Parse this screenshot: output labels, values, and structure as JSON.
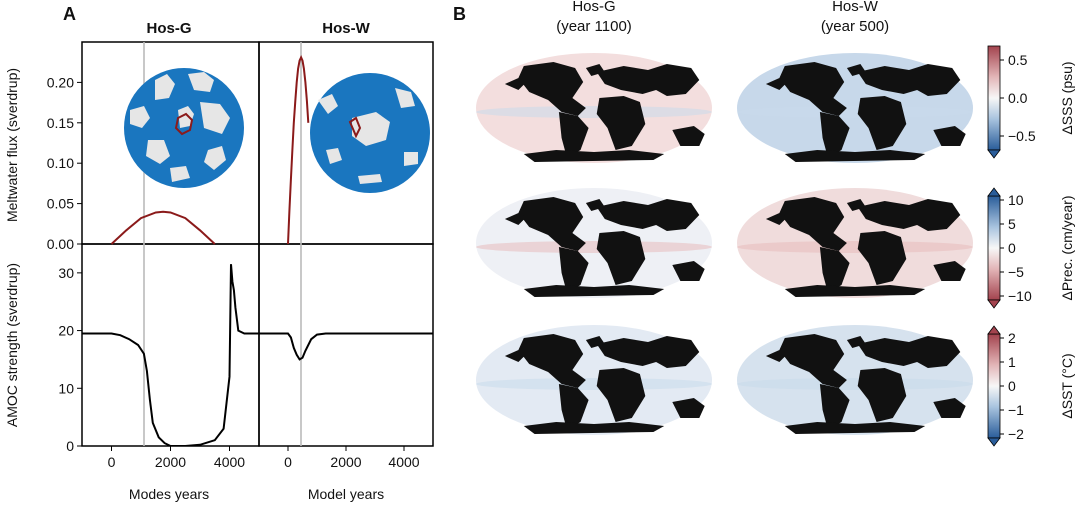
{
  "panel_a": {
    "letter": "A",
    "top_titles": [
      "Hos-G",
      "Hos-W"
    ],
    "top_ylabel": "Meltwater flux (sverdrup)",
    "bottom_ylabel": "AMOC strength (sverdrup)",
    "xlabels": [
      "Modes years",
      "Model years"
    ],
    "marker_years": [
      1100,
      500
    ]
  },
  "panel_b": {
    "letter": "B",
    "col_titles": [
      "Hos-G",
      "Hos-W"
    ],
    "col_subtitles": [
      "(year 1100)",
      "(year 500)"
    ],
    "colorbars": [
      {
        "label": "ΔSSS (psu)",
        "ticks": [
          "0.5",
          "0.0",
          "−0.5"
        ],
        "palette": "red-top"
      },
      {
        "label": "ΔPrec. (cm/year)",
        "ticks": [
          "10",
          "5",
          "0",
          "−5",
          "−10"
        ],
        "palette": "blue-top"
      },
      {
        "label": "ΔSST (°C)",
        "ticks": [
          "2",
          "1",
          "0",
          "−1",
          "−2"
        ],
        "palette": "red-top"
      }
    ],
    "map_tints": [
      [
        "#f3dede",
        "#c7d8ea"
      ],
      [
        "#eef0f5",
        "#f0dcdc"
      ],
      [
        "#e3eaf3",
        "#d6e2ee"
      ]
    ]
  },
  "colors": {
    "flux": "#8b1a1a",
    "amoc": "#000000",
    "marker": "#bbbbbb",
    "ocean": "#1a76bf",
    "ice": "#e6e6e6"
  },
  "chart_data": [
    {
      "type": "line",
      "title": "Hos-G",
      "xlabel": "",
      "ylabel": "Meltwater flux (sverdrup)",
      "xlim": [
        -1000,
        5000
      ],
      "ylim": [
        0,
        0.25
      ],
      "xticks": [
        0,
        2000,
        4000
      ],
      "yticks": [
        0.0,
        0.05,
        0.1,
        0.15,
        0.2
      ],
      "ytick_labels": [
        "0.00",
        "0.05",
        "0.10",
        "0.15",
        "0.20"
      ],
      "series": [
        {
          "x": [
            0,
            500,
            1000,
            1500,
            1750,
            2000,
            2500,
            3000,
            3500
          ],
          "y": [
            0.0,
            0.017,
            0.032,
            0.039,
            0.04,
            0.039,
            0.032,
            0.017,
            0.0
          ]
        }
      ]
    },
    {
      "type": "line",
      "title": "Hos-W",
      "xlabel": "",
      "ylabel": "",
      "xlim": [
        -1000,
        5000
      ],
      "ylim": [
        0,
        0.25
      ],
      "xticks": [
        0,
        2000,
        4000
      ],
      "series": [
        {
          "x": [
            0,
            50,
            100,
            150,
            200,
            250,
            300,
            350,
            400,
            450,
            500,
            550,
            600,
            650,
            700
          ],
          "y": [
            0.0,
            0.041,
            0.08,
            0.117,
            0.15,
            0.177,
            0.2,
            0.217,
            0.227,
            0.231,
            0.227,
            0.217,
            0.2,
            0.177,
            0.15
          ]
        }
      ]
    },
    {
      "type": "line",
      "title": "",
      "xlabel": "Modes years",
      "ylabel": "AMOC strength (sverdrup)",
      "xlim": [
        -1000,
        5000
      ],
      "ylim": [
        0,
        35
      ],
      "xticks": [
        0,
        2000,
        4000
      ],
      "xtick_labels": [
        "0",
        "2000",
        "4000"
      ],
      "yticks": [
        0,
        10,
        20,
        30
      ],
      "series": [
        {
          "x": [
            -1000,
            0,
            300,
            600,
            900,
            1100,
            1200,
            1300,
            1400,
            1600,
            1800,
            2000,
            2200,
            2500,
            3000,
            3500,
            3800,
            4000,
            4050,
            4100,
            4150,
            4200,
            4300,
            4500,
            4800,
            5000
          ],
          "y": [
            19.5,
            19.5,
            19.2,
            18.5,
            17.5,
            16.0,
            13.0,
            8.0,
            4.0,
            1.5,
            0.5,
            0.0,
            0.0,
            0.0,
            0.2,
            1.0,
            3.0,
            12.0,
            31.5,
            28.5,
            27.0,
            24.0,
            20.0,
            19.5,
            19.5,
            19.5
          ]
        }
      ]
    },
    {
      "type": "line",
      "title": "",
      "xlabel": "Model years",
      "ylabel": "",
      "xlim": [
        -1000,
        5000
      ],
      "ylim": [
        0,
        35
      ],
      "xticks": [
        0,
        2000,
        4000
      ],
      "xtick_labels": [
        "0",
        "2000",
        "4000"
      ],
      "series": [
        {
          "x": [
            -1000,
            0,
            100,
            200,
            300,
            400,
            500,
            600,
            800,
            1000,
            1300,
            1600,
            2000,
            3000,
            4000,
            5000
          ],
          "y": [
            19.5,
            19.5,
            18.8,
            17.0,
            15.8,
            15.0,
            15.3,
            16.5,
            18.5,
            19.3,
            19.5,
            19.5,
            19.5,
            19.5,
            19.5,
            19.5
          ]
        }
      ]
    }
  ]
}
